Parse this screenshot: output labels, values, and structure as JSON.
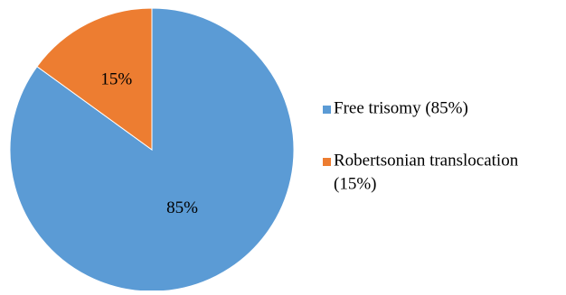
{
  "chart_data": {
    "type": "pie",
    "categories": [
      "Free trisomy (85%)",
      "Robertsonian translocation (15%)"
    ],
    "values": [
      85,
      15
    ],
    "data_labels": [
      "85%",
      "15%"
    ],
    "colors": [
      "#5B9BD5",
      "#ED7D31"
    ],
    "title": "",
    "legend_position": "right",
    "legend": [
      {
        "lines": [
          "Free trisomy (85%)"
        ]
      },
      {
        "lines": [
          "Robertsonian translocation",
          "(15%)"
        ]
      }
    ]
  }
}
